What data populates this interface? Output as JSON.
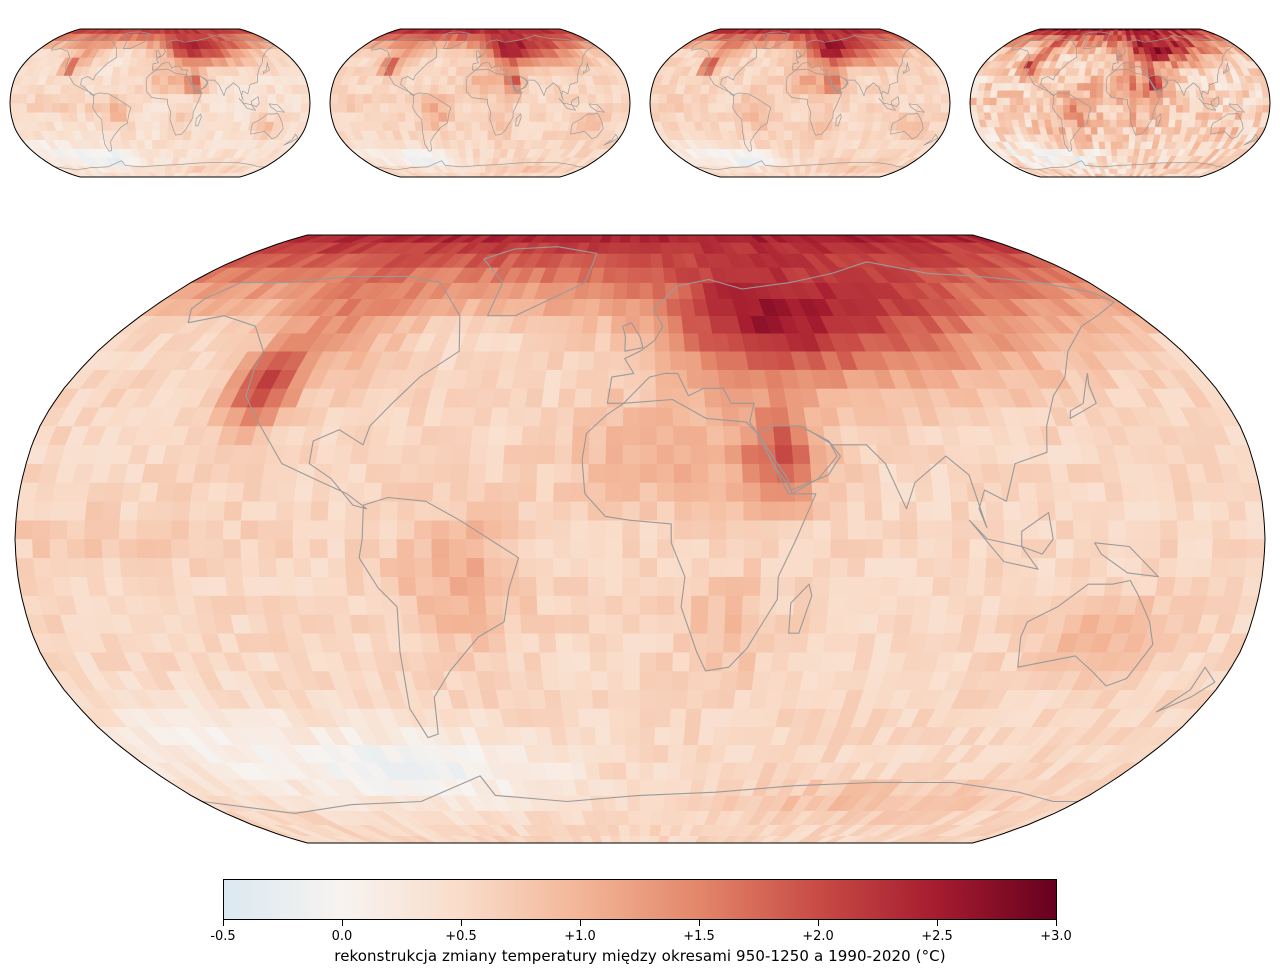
{
  "figure": {
    "panels": [
      {
        "name": "small-map-1"
      },
      {
        "name": "small-map-2"
      },
      {
        "name": "small-map-3"
      },
      {
        "name": "small-map-4"
      },
      {
        "name": "main-map"
      }
    ],
    "colormap": {
      "name": "RdBu_r (warm half)",
      "stops": [
        {
          "value": -0.5,
          "color": "#dbe9f1"
        },
        {
          "value": 0.0,
          "color": "#f7f3f0"
        },
        {
          "value": 0.5,
          "color": "#f9dcc9"
        },
        {
          "value": 1.0,
          "color": "#f3b597"
        },
        {
          "value": 1.5,
          "color": "#e3866a"
        },
        {
          "value": 2.0,
          "color": "#c84b45"
        },
        {
          "value": 2.5,
          "color": "#a51c2f"
        },
        {
          "value": 3.0,
          "color": "#67001f"
        }
      ]
    },
    "land_outline_color": "#9a9a9a",
    "colorbar": {
      "ticks": [
        {
          "value": -0.5,
          "label": "-0.5"
        },
        {
          "value": 0.0,
          "label": "0.0"
        },
        {
          "value": 0.5,
          "label": "+0.5"
        },
        {
          "value": 1.0,
          "label": "+1.0"
        },
        {
          "value": 1.5,
          "label": "+1.5"
        },
        {
          "value": 2.0,
          "label": "+2.0"
        },
        {
          "value": 2.5,
          "label": "+2.5"
        },
        {
          "value": 3.0,
          "label": "+3.0"
        }
      ],
      "range": [
        -0.5,
        3.0
      ],
      "label": "rekonstrukcja zmiany temperatury między okresami 950-1250 a 1990-2020 (°C)"
    }
  }
}
